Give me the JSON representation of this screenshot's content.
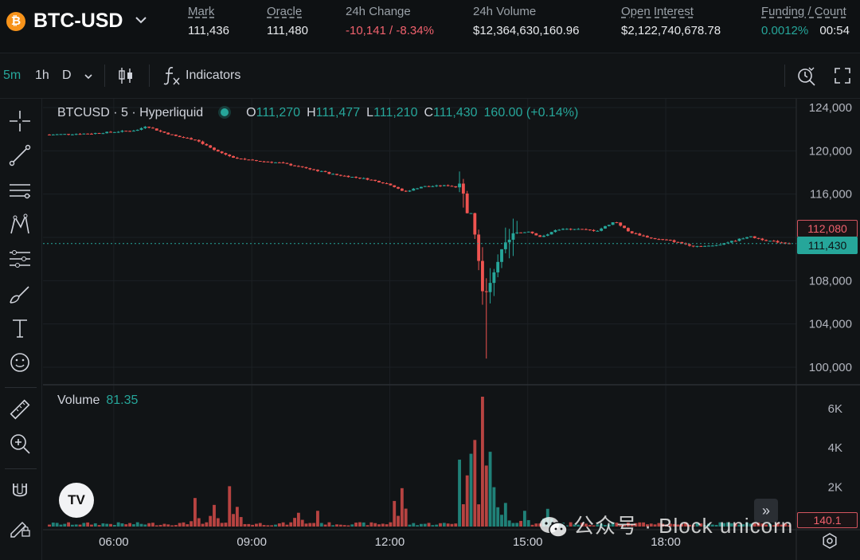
{
  "header": {
    "pair": "BTC-USD",
    "logo_glyph": "₿",
    "stats": [
      {
        "label": "Mark",
        "value": "111,436",
        "underline": true,
        "tone": "neutral"
      },
      {
        "label": "Oracle",
        "value": "111,480",
        "underline": true,
        "tone": "neutral"
      },
      {
        "label": "24h Change",
        "value": "-10,141 / -8.34%",
        "underline": false,
        "tone": "neg"
      },
      {
        "label": "24h Volume",
        "value": "$12,364,630,160.96",
        "underline": false,
        "tone": "neutral"
      },
      {
        "label": "Open Interest",
        "value": "$2,122,740,678.78",
        "underline": true,
        "tone": "neutral"
      },
      {
        "label": "Funding / Count",
        "value": "0.0012%",
        "extra": "00:54",
        "underline": true,
        "tone": "pos"
      }
    ]
  },
  "toolbar": {
    "timeframes": [
      {
        "label": "5m",
        "active": true
      },
      {
        "label": "1h",
        "active": false
      },
      {
        "label": "D",
        "active": false
      }
    ],
    "indicators_label": "Indicators",
    "icons": [
      "candles-icon",
      "fx-icon",
      "replay-icon",
      "fullscreen-icon"
    ]
  },
  "left_tools": [
    "crosshair-icon",
    "trendline-icon",
    "fib-icon",
    "pattern-icon",
    "prediction-icon",
    "brush-icon",
    "text-icon",
    "emoji-icon",
    "ruler-icon",
    "zoom-in-icon",
    "magnet-icon",
    "lock-draw-icon"
  ],
  "legend": {
    "symbol": "BTCUSD · 5 · Hyperliquid",
    "O_label": "O",
    "O": "111,270",
    "H_label": "H",
    "H": "111,477",
    "L_label": "L",
    "L": "111,210",
    "C_label": "C",
    "C": "111,430",
    "change": "160.00 (+0.14%)"
  },
  "volume_legend": {
    "label": "Volume",
    "value": "81.35"
  },
  "price_tags": {
    "high": "112,080",
    "last": "111,430",
    "volume": "140.1"
  },
  "tv_logo": "TV",
  "scroll_label": "»",
  "watermark": "公众号 · Block unicorn",
  "chart_data": {
    "type": "candlestick",
    "interval": "5m",
    "yaxis": {
      "ticks": [
        100000,
        104000,
        108000,
        112000,
        116000,
        120000,
        124000
      ],
      "tick_labels": [
        "100,000",
        "104,000",
        "108,000",
        "112,000",
        "116,000",
        "120,000",
        "124,000"
      ],
      "range": [
        99000,
        125000
      ]
    },
    "volume_axis": {
      "ticks": [
        2000,
        4000,
        6000
      ],
      "tick_labels": [
        "2K",
        "4K",
        "6K"
      ],
      "range": [
        0,
        7000
      ]
    },
    "xaxis": {
      "tick_labels": [
        "06:00",
        "09:00",
        "12:00",
        "15:00",
        "18:00"
      ],
      "tick_hours": [
        6,
        9,
        12,
        15,
        18
      ],
      "range_hours": [
        4.6,
        20.7
      ]
    },
    "colors": {
      "up": "#26a69a",
      "down": "#ef5350"
    },
    "last_price": 111430,
    "close_anchors": [
      {
        "h": 4.6,
        "p": 121500
      },
      {
        "h": 5.5,
        "p": 121600
      },
      {
        "h": 6.5,
        "p": 121900
      },
      {
        "h": 6.7,
        "p": 122300
      },
      {
        "h": 7.0,
        "p": 121800
      },
      {
        "h": 7.4,
        "p": 121300
      },
      {
        "h": 7.8,
        "p": 121000
      },
      {
        "h": 8.2,
        "p": 120000
      },
      {
        "h": 8.6,
        "p": 119400
      },
      {
        "h": 9.0,
        "p": 119100
      },
      {
        "h": 9.6,
        "p": 118900
      },
      {
        "h": 10.2,
        "p": 118400
      },
      {
        "h": 10.8,
        "p": 117800
      },
      {
        "h": 11.5,
        "p": 117400
      },
      {
        "h": 12.0,
        "p": 116900
      },
      {
        "h": 12.3,
        "p": 116200
      },
      {
        "h": 12.7,
        "p": 116700
      },
      {
        "h": 13.3,
        "p": 116800
      },
      {
        "h": 13.55,
        "p": 116500
      },
      {
        "h": 13.65,
        "p": 114800
      },
      {
        "h": 13.8,
        "p": 113900
      },
      {
        "h": 13.9,
        "p": 111500
      },
      {
        "h": 14.0,
        "p": 107500
      },
      {
        "h": 14.05,
        "p": 105900
      },
      {
        "h": 14.15,
        "p": 107300
      },
      {
        "h": 14.3,
        "p": 109500
      },
      {
        "h": 14.5,
        "p": 111000
      },
      {
        "h": 14.7,
        "p": 112200
      },
      {
        "h": 15.0,
        "p": 112600
      },
      {
        "h": 15.3,
        "p": 112000
      },
      {
        "h": 15.6,
        "p": 112700
      },
      {
        "h": 16.0,
        "p": 112800
      },
      {
        "h": 16.5,
        "p": 112600
      },
      {
        "h": 16.9,
        "p": 113500
      },
      {
        "h": 17.2,
        "p": 112500
      },
      {
        "h": 17.7,
        "p": 111900
      },
      {
        "h": 18.1,
        "p": 111700
      },
      {
        "h": 18.6,
        "p": 111200
      },
      {
        "h": 19.0,
        "p": 111200
      },
      {
        "h": 19.5,
        "p": 111700
      },
      {
        "h": 19.8,
        "p": 112100
      },
      {
        "h": 20.2,
        "p": 111700
      },
      {
        "h": 20.7,
        "p": 111430
      }
    ],
    "volume_spikes": [
      {
        "h": 7.8,
        "v": 1450
      },
      {
        "h": 8.2,
        "v": 1100
      },
      {
        "h": 8.5,
        "v": 2050
      },
      {
        "h": 8.7,
        "v": 1000
      },
      {
        "h": 10.0,
        "v": 700
      },
      {
        "h": 10.4,
        "v": 800
      },
      {
        "h": 12.1,
        "v": 1300
      },
      {
        "h": 12.3,
        "v": 1950
      },
      {
        "h": 13.55,
        "v": 3400
      },
      {
        "h": 13.65,
        "v": 2600
      },
      {
        "h": 13.75,
        "v": 3700
      },
      {
        "h": 13.85,
        "v": 4400
      },
      {
        "h": 14.0,
        "v": 6600
      },
      {
        "h": 14.1,
        "v": 3100
      },
      {
        "h": 14.2,
        "v": 3800
      },
      {
        "h": 14.3,
        "v": 2000
      },
      {
        "h": 14.5,
        "v": 1200
      },
      {
        "h": 14.9,
        "v": 800
      },
      {
        "h": 15.4,
        "v": 900
      }
    ]
  }
}
